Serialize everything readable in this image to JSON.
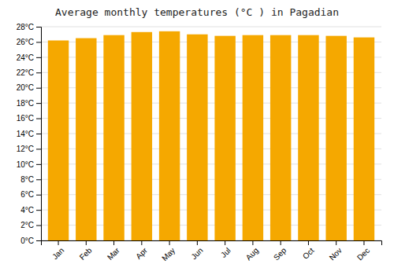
{
  "chart_data": {
    "type": "bar",
    "title": "Average monthly temperatures (°C ) in Pagadian",
    "categories": [
      "Jan",
      "Feb",
      "Mar",
      "Apr",
      "May",
      "Jun",
      "Jul",
      "Aug",
      "Sep",
      "Oct",
      "Nov",
      "Dec"
    ],
    "values": [
      26.2,
      26.5,
      26.9,
      27.3,
      27.4,
      27.0,
      26.8,
      26.9,
      26.9,
      26.9,
      26.8,
      26.6
    ],
    "color": "#F5A800",
    "ylim": [
      0,
      28
    ],
    "yticks": [
      {
        "value": 0,
        "label": "0°C"
      },
      {
        "value": 2,
        "label": "2°C"
      },
      {
        "value": 4,
        "label": "4°C"
      },
      {
        "value": 6,
        "label": "6°C"
      },
      {
        "value": 8,
        "label": "8°C"
      },
      {
        "value": 10,
        "label": "10°C"
      },
      {
        "value": 12,
        "label": "12°C"
      },
      {
        "value": 14,
        "label": "14°C"
      },
      {
        "value": 16,
        "label": "16°C"
      },
      {
        "value": 18,
        "label": "18°C"
      },
      {
        "value": 20,
        "label": "20°C"
      },
      {
        "value": 22,
        "label": "22°C"
      },
      {
        "value": 24,
        "label": "24°C"
      },
      {
        "value": 26,
        "label": "26°C"
      },
      {
        "value": 28,
        "label": "28°C"
      }
    ],
    "grid": true
  }
}
